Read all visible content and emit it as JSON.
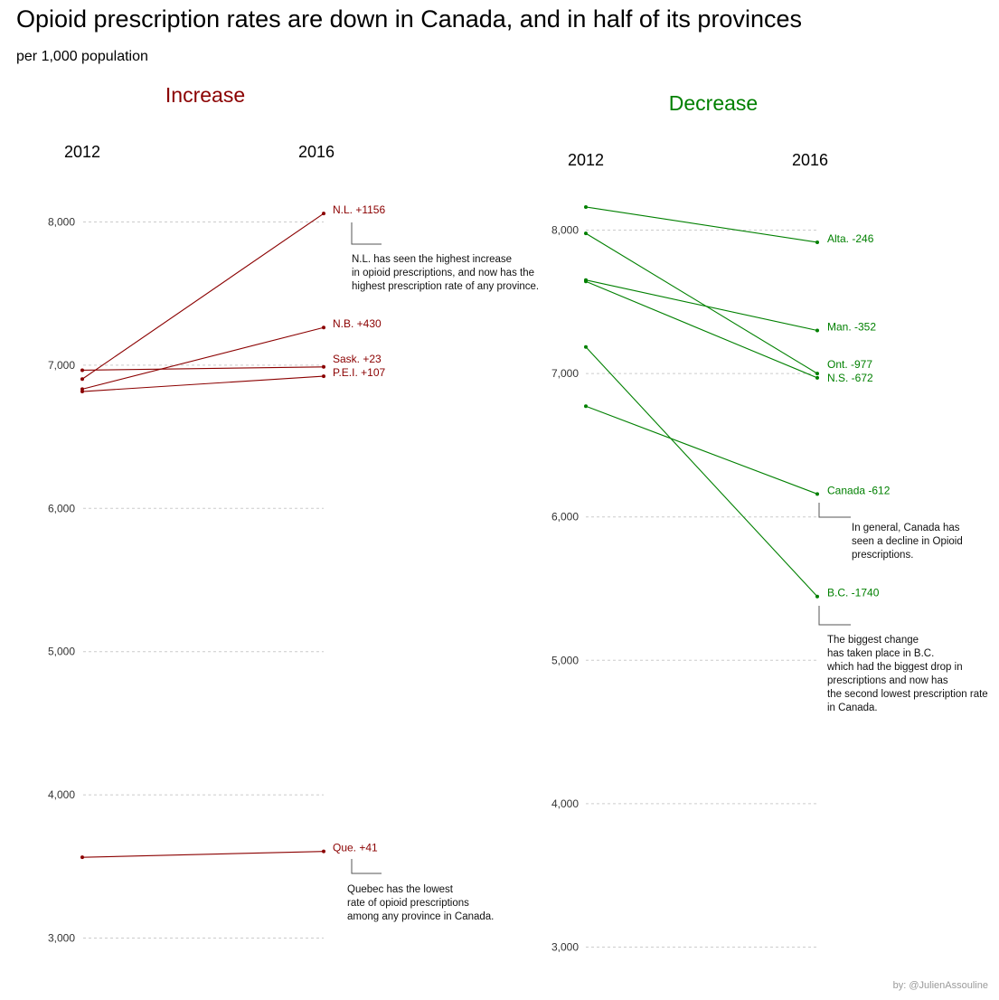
{
  "title": "Opioid prescription rates are down in Canada, and in half of its provinces",
  "subtitle": "per 1,000 population",
  "credit": "by: @JulienAssouline",
  "colors": {
    "increase": "#8b0000",
    "decrease": "#008000",
    "grid": "#cccccc",
    "annotation_line": "#555555",
    "credit": "#9a9a9a"
  },
  "chart_data": [
    {
      "type": "line",
      "title": "Increase",
      "x": [
        "2012",
        "2016"
      ],
      "ylim": [
        3000,
        8000
      ],
      "yticks": [
        "3,000",
        "4,000",
        "5,000",
        "6,000",
        "7,000",
        "8,000"
      ],
      "grid": true,
      "series": [
        {
          "name": "N.L.",
          "label": "N.L. +1156",
          "values": [
            6903,
            8059
          ]
        },
        {
          "name": "N.B.",
          "label": "N.B. +430",
          "values": [
            6833,
            7263
          ]
        },
        {
          "name": "Sask.",
          "label": "Sask. +23",
          "values": [
            6965,
            6988
          ]
        },
        {
          "name": "P.E.I.",
          "label": "P.E.I. +107",
          "values": [
            6816,
            6923
          ]
        },
        {
          "name": "Que.",
          "label": "Que. +41",
          "values": [
            3564,
            3605
          ]
        }
      ],
      "annotations": [
        {
          "target": "N.L.",
          "lines": [
            "N.L. has seen the highest increase",
            "in opioid prescriptions, and now has the",
            "highest prescription rate of any province."
          ]
        },
        {
          "target": "Que.",
          "lines": [
            "Quebec has the lowest",
            "rate of opioid prescriptions",
            "among any province in Canada."
          ]
        }
      ]
    },
    {
      "type": "line",
      "title": "Decrease",
      "x": [
        "2012",
        "2016"
      ],
      "ylim": [
        3000,
        8000
      ],
      "yticks": [
        "3,000",
        "4,000",
        "5,000",
        "6,000",
        "7,000",
        "8,000"
      ],
      "grid": true,
      "series": [
        {
          "name": "Alta.",
          "label": "Alta. -246",
          "values": [
            8161,
            7915
          ]
        },
        {
          "name": "Man.",
          "label": "Man. -352",
          "values": [
            7652,
            7300
          ]
        },
        {
          "name": "Ont.",
          "label": "Ont. -977",
          "values": [
            7977,
            7000
          ]
        },
        {
          "name": "N.S.",
          "label": "N.S. -672",
          "values": [
            7642,
            6970
          ]
        },
        {
          "name": "Canada",
          "label": "Canada -612",
          "values": [
            6772,
            6160
          ]
        },
        {
          "name": "B.C.",
          "label": "B.C. -1740",
          "values": [
            7185,
            5445
          ]
        }
      ],
      "annotations": [
        {
          "target": "Canada",
          "lines": [
            "In general, Canada has",
            "seen a decline in Opioid",
            "prescriptions."
          ]
        },
        {
          "target": "B.C.",
          "lines": [
            "The biggest change",
            "has taken place in B.C.",
            "which had the biggest drop in",
            "prescriptions and now has",
            "the second lowest prescription rate",
            "in Canada."
          ]
        }
      ]
    }
  ]
}
